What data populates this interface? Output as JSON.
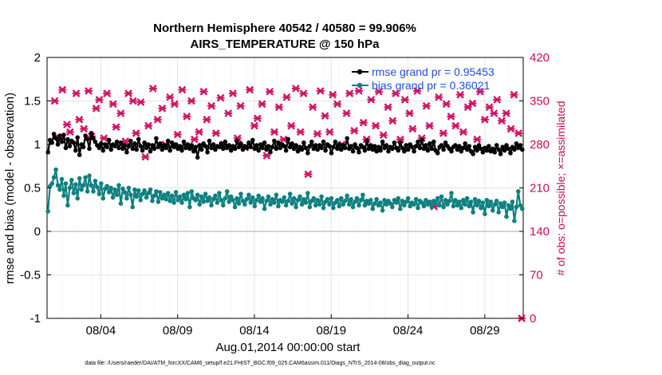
{
  "chart_data": {
    "type": "line",
    "title_line1": "Northern Hemisphere 40542 / 40580 = 99.906%",
    "title_line2": "AIRS_TEMPERATURE @ 150 hPa",
    "xlabel": "Aug.01,2014 00:00:00 start",
    "ylabel_left": "rmse and bias (model - observation)",
    "ylabel_right": "# of obs: o=possible; ×=assimilated",
    "footnote": "data file: /Users/raeder/DAI/ATM_forcXX/CAM6_setup/f.e21.FHIST_BGC.f09_025.CAM6assim.011/Diags_NTrS_2014-08/obs_diag_output.nc",
    "ylim_left": [
      -1,
      2
    ],
    "ylim_right": [
      0,
      420
    ],
    "xlim_days": [
      0.5,
      31.5
    ],
    "left_ticks": [
      "-1",
      "-0.5",
      "0",
      "0.5",
      "1",
      "1.5",
      "2"
    ],
    "right_ticks": [
      "0",
      "70",
      "140",
      "210",
      "280",
      "350",
      "420"
    ],
    "x_tick_labels": [
      "08/04",
      "08/09",
      "08/14",
      "08/19",
      "08/24",
      "08/29"
    ],
    "x_tick_days": [
      4,
      9,
      14,
      19,
      24,
      29
    ],
    "zero_line": 0,
    "grid": true,
    "series": [
      {
        "name": "rmse",
        "legend": "rmse grand pr = 0.95453",
        "color": "#000000",
        "marker": "circle",
        "values": [
          0.91,
          1.05,
          1.02,
          1.12,
          1.07,
          1.0,
          1.1,
          1.03,
          1.11,
          0.96,
          1.06,
          0.98,
          1.04,
          1.02,
          0.93,
          1.08,
          0.88,
          1.0,
          0.97,
          1.1,
          1.06,
          0.95,
          1.13,
          1.07,
          1.03,
          0.99,
          0.96,
          1.01,
          0.93,
          1.0,
          0.97,
          1.05,
          0.94,
          1.0,
          0.98,
          1.03,
          0.96,
          1.02,
          0.95,
          0.99,
          0.91,
          0.98,
          1.04,
          0.95,
          1.01,
          0.94,
          1.06,
          0.98,
          0.93,
          1.02,
          0.96,
          1.0,
          0.92,
          0.99,
          0.95,
          1.07,
          0.97,
          1.01,
          0.94,
          0.99,
          0.96,
          1.04,
          0.93,
          1.02,
          0.97,
          1.0,
          0.95,
          0.98,
          0.93,
          1.03,
          0.96,
          1.0,
          0.95,
          0.99,
          0.92,
          0.97,
          0.85,
          0.99,
          0.94,
          1.01,
          0.98,
          0.91,
          1.04,
          0.96,
          1.0,
          0.94,
          0.98,
          0.97,
          1.01,
          0.95,
          1.03,
          0.96,
          0.99,
          0.93,
          0.98,
          0.95,
          1.04,
          0.97,
          1.01,
          0.94,
          0.98,
          0.96,
          1.02,
          0.97,
          1.05,
          0.95,
          0.99,
          0.93,
          1.0,
          0.96,
          1.02,
          0.94,
          0.98,
          0.91,
          0.97,
          1.04,
          0.95,
          1.02,
          0.96,
          1.0,
          0.98,
          0.93,
          1.06,
          0.97,
          1.01,
          0.95,
          0.99,
          0.92,
          0.97,
          0.94,
          1.02,
          0.96,
          0.9,
          0.98,
          1.03,
          0.95,
          0.99,
          0.94,
          0.99,
          0.96,
          1.03,
          0.93,
          1.0,
          0.98,
          0.9,
          0.97,
          1.03,
          0.95,
          1.0,
          0.94,
          0.99,
          0.96,
          1.07,
          0.95,
          0.98,
          0.92,
          1.0,
          0.96,
          0.91,
          0.99,
          0.97,
          0.93,
          1.04,
          0.95,
          0.99,
          0.94,
          0.98,
          0.92,
          0.97,
          0.93,
          1.03,
          0.96,
          0.99,
          0.92,
          0.97,
          0.95,
          1.02,
          0.96,
          0.93,
          1.02,
          0.96,
          0.92,
          0.99,
          0.94,
          1.0,
          0.97,
          0.92,
          0.98,
          1.03,
          0.96,
          1.05,
          0.95,
          0.99,
          0.93,
          1.01,
          0.95,
          1.03,
          0.93,
          0.9,
          0.97,
          0.99,
          0.94,
          1.02,
          0.98,
          0.95,
          0.92,
          0.97,
          0.99,
          0.94,
          0.98,
          0.92,
          0.96,
          1.01,
          0.94,
          0.98,
          0.92,
          0.89,
          0.97,
          0.93,
          0.99,
          0.95,
          0.91,
          0.96,
          0.93,
          0.98,
          0.92,
          0.95,
          0.91,
          0.99,
          0.94,
          0.89,
          0.97,
          0.93,
          0.99,
          0.95,
          0.9,
          0.97,
          0.94,
          1.01,
          0.96,
          0.99,
          0.94
        ]
      },
      {
        "name": "bias",
        "legend": "bias grand pr = 0.36021",
        "color": "#0f8080",
        "marker": "circle",
        "values": [
          0.23,
          0.52,
          0.55,
          0.62,
          0.71,
          0.53,
          0.48,
          0.6,
          0.41,
          0.55,
          0.3,
          0.5,
          0.59,
          0.44,
          0.54,
          0.38,
          0.61,
          0.48,
          0.53,
          0.62,
          0.46,
          0.64,
          0.53,
          0.46,
          0.58,
          0.51,
          0.43,
          0.55,
          0.38,
          0.49,
          0.52,
          0.45,
          0.5,
          0.39,
          0.48,
          0.42,
          0.53,
          0.32,
          0.49,
          0.45,
          0.38,
          0.5,
          0.42,
          0.28,
          0.48,
          0.4,
          0.47,
          0.36,
          0.43,
          0.47,
          0.39,
          0.44,
          0.48,
          0.35,
          0.41,
          0.46,
          0.34,
          0.45,
          0.38,
          0.42,
          0.37,
          0.44,
          0.35,
          0.41,
          0.33,
          0.45,
          0.36,
          0.4,
          0.33,
          0.42,
          0.37,
          0.44,
          0.28,
          0.46,
          0.38,
          0.36,
          0.42,
          0.31,
          0.4,
          0.34,
          0.43,
          0.35,
          0.39,
          0.3,
          0.37,
          0.41,
          0.33,
          0.44,
          0.36,
          0.3,
          0.38,
          0.46,
          0.34,
          0.4,
          0.36,
          0.28,
          0.38,
          0.32,
          0.43,
          0.35,
          0.31,
          0.37,
          0.42,
          0.33,
          0.39,
          0.29,
          0.36,
          0.41,
          0.34,
          0.38,
          0.26,
          0.35,
          0.4,
          0.31,
          0.37,
          0.33,
          0.42,
          0.29,
          0.36,
          0.34,
          0.39,
          0.3,
          0.35,
          0.43,
          0.32,
          0.38,
          0.28,
          0.36,
          0.4,
          0.31,
          0.37,
          0.33,
          0.44,
          0.28,
          0.35,
          0.38,
          0.3,
          0.36,
          0.31,
          0.4,
          0.27,
          0.34,
          0.37,
          0.31,
          0.38,
          0.27,
          0.33,
          0.36,
          0.29,
          0.38,
          0.31,
          0.35,
          0.41,
          0.31,
          0.37,
          0.28,
          0.34,
          0.38,
          0.3,
          0.36,
          0.42,
          0.3,
          0.35,
          0.32,
          0.36,
          0.26,
          0.32,
          0.37,
          0.3,
          0.33,
          0.24,
          0.36,
          0.31,
          0.35,
          0.32,
          0.28,
          0.36,
          0.33,
          0.38,
          0.26,
          0.35,
          0.3,
          0.34,
          0.38,
          0.29,
          0.33,
          0.31,
          0.37,
          0.27,
          0.35,
          0.33,
          0.29,
          0.36,
          0.31,
          0.34,
          0.28,
          0.35,
          0.32,
          0.38,
          0.3,
          0.4,
          0.28,
          0.36,
          0.31,
          0.35,
          0.44,
          0.29,
          0.36,
          0.3,
          0.34,
          0.27,
          0.36,
          0.31,
          0.38,
          0.29,
          0.34,
          0.22,
          0.37,
          0.3,
          0.35,
          0.27,
          0.33,
          0.2,
          0.36,
          0.29,
          0.34,
          0.24,
          0.31,
          0.35,
          0.22,
          0.32,
          0.28,
          0.33,
          0.17,
          0.3,
          0.26,
          0.34,
          0.12,
          0.28,
          0.46,
          0.3,
          0.26
        ]
      }
    ],
    "obs_counts": {
      "name": "# of obs assimilated",
      "color": "#d11464",
      "marker": "x",
      "days": [
        1.0,
        1.3,
        1.5,
        1.8,
        2.0,
        2.4,
        2.6,
        2.9,
        3.2,
        3.4,
        3.7,
        3.9,
        4.2,
        4.4,
        4.8,
        5.0,
        5.3,
        5.6,
        5.8,
        6.1,
        6.3,
        6.6,
        6.9,
        7.1,
        7.4,
        7.7,
        8.0,
        8.2,
        8.5,
        8.8,
        9.0,
        9.3,
        9.6,
        9.9,
        10.1,
        10.4,
        10.7,
        10.9,
        11.2,
        11.5,
        11.8,
        12.0,
        12.3,
        12.6,
        12.9,
        13.1,
        13.4,
        13.7,
        14.0,
        14.2,
        14.5,
        14.8,
        15.0,
        15.3,
        15.6,
        15.9,
        16.1,
        16.4,
        16.7,
        17.0,
        17.2,
        17.5,
        17.8,
        18.1,
        18.3,
        18.6,
        18.9,
        19.1,
        19.4,
        19.7,
        20.0,
        20.2,
        20.5,
        20.8,
        21.1,
        21.3,
        21.6,
        21.9,
        22.1,
        22.4,
        22.7,
        23.0,
        23.2,
        23.5,
        23.8,
        24.1,
        24.3,
        24.6,
        24.9,
        25.2,
        25.4,
        25.7,
        26.0,
        26.3,
        26.5,
        26.8,
        27.1,
        27.4,
        27.6,
        27.9,
        28.2,
        28.5,
        28.7,
        29.0,
        29.3,
        29.6,
        29.8,
        30.1,
        30.4,
        30.7,
        30.9,
        31.2,
        31.4
      ],
      "counts": [
        350,
        290,
        368,
        312,
        300,
        362,
        320,
        305,
        366,
        293,
        338,
        352,
        290,
        362,
        345,
        308,
        330,
        285,
        362,
        350,
        298,
        348,
        260,
        310,
        370,
        320,
        338,
        280,
        356,
        345,
        296,
        368,
        325,
        350,
        288,
        300,
        365,
        320,
        342,
        298,
        355,
        280,
        330,
        362,
        290,
        342,
        275,
        368,
        310,
        322,
        345,
        262,
        365,
        300,
        340,
        288,
        356,
        310,
        370,
        300,
        362,
        232,
        340,
        297,
        366,
        326,
        300,
        360,
        345,
        280,
        330,
        362,
        302,
        366,
        315,
        288,
        352,
        310,
        365,
        295,
        340,
        318,
        362,
        288,
        352,
        330,
        305,
        366,
        290,
        342,
        310,
        180,
        356,
        298,
        345,
        325,
        310,
        360,
        300,
        340,
        346,
        288,
        365,
        320,
        340,
        330,
        352,
        318,
        330,
        305,
        360,
        298,
        0
      ]
    }
  }
}
